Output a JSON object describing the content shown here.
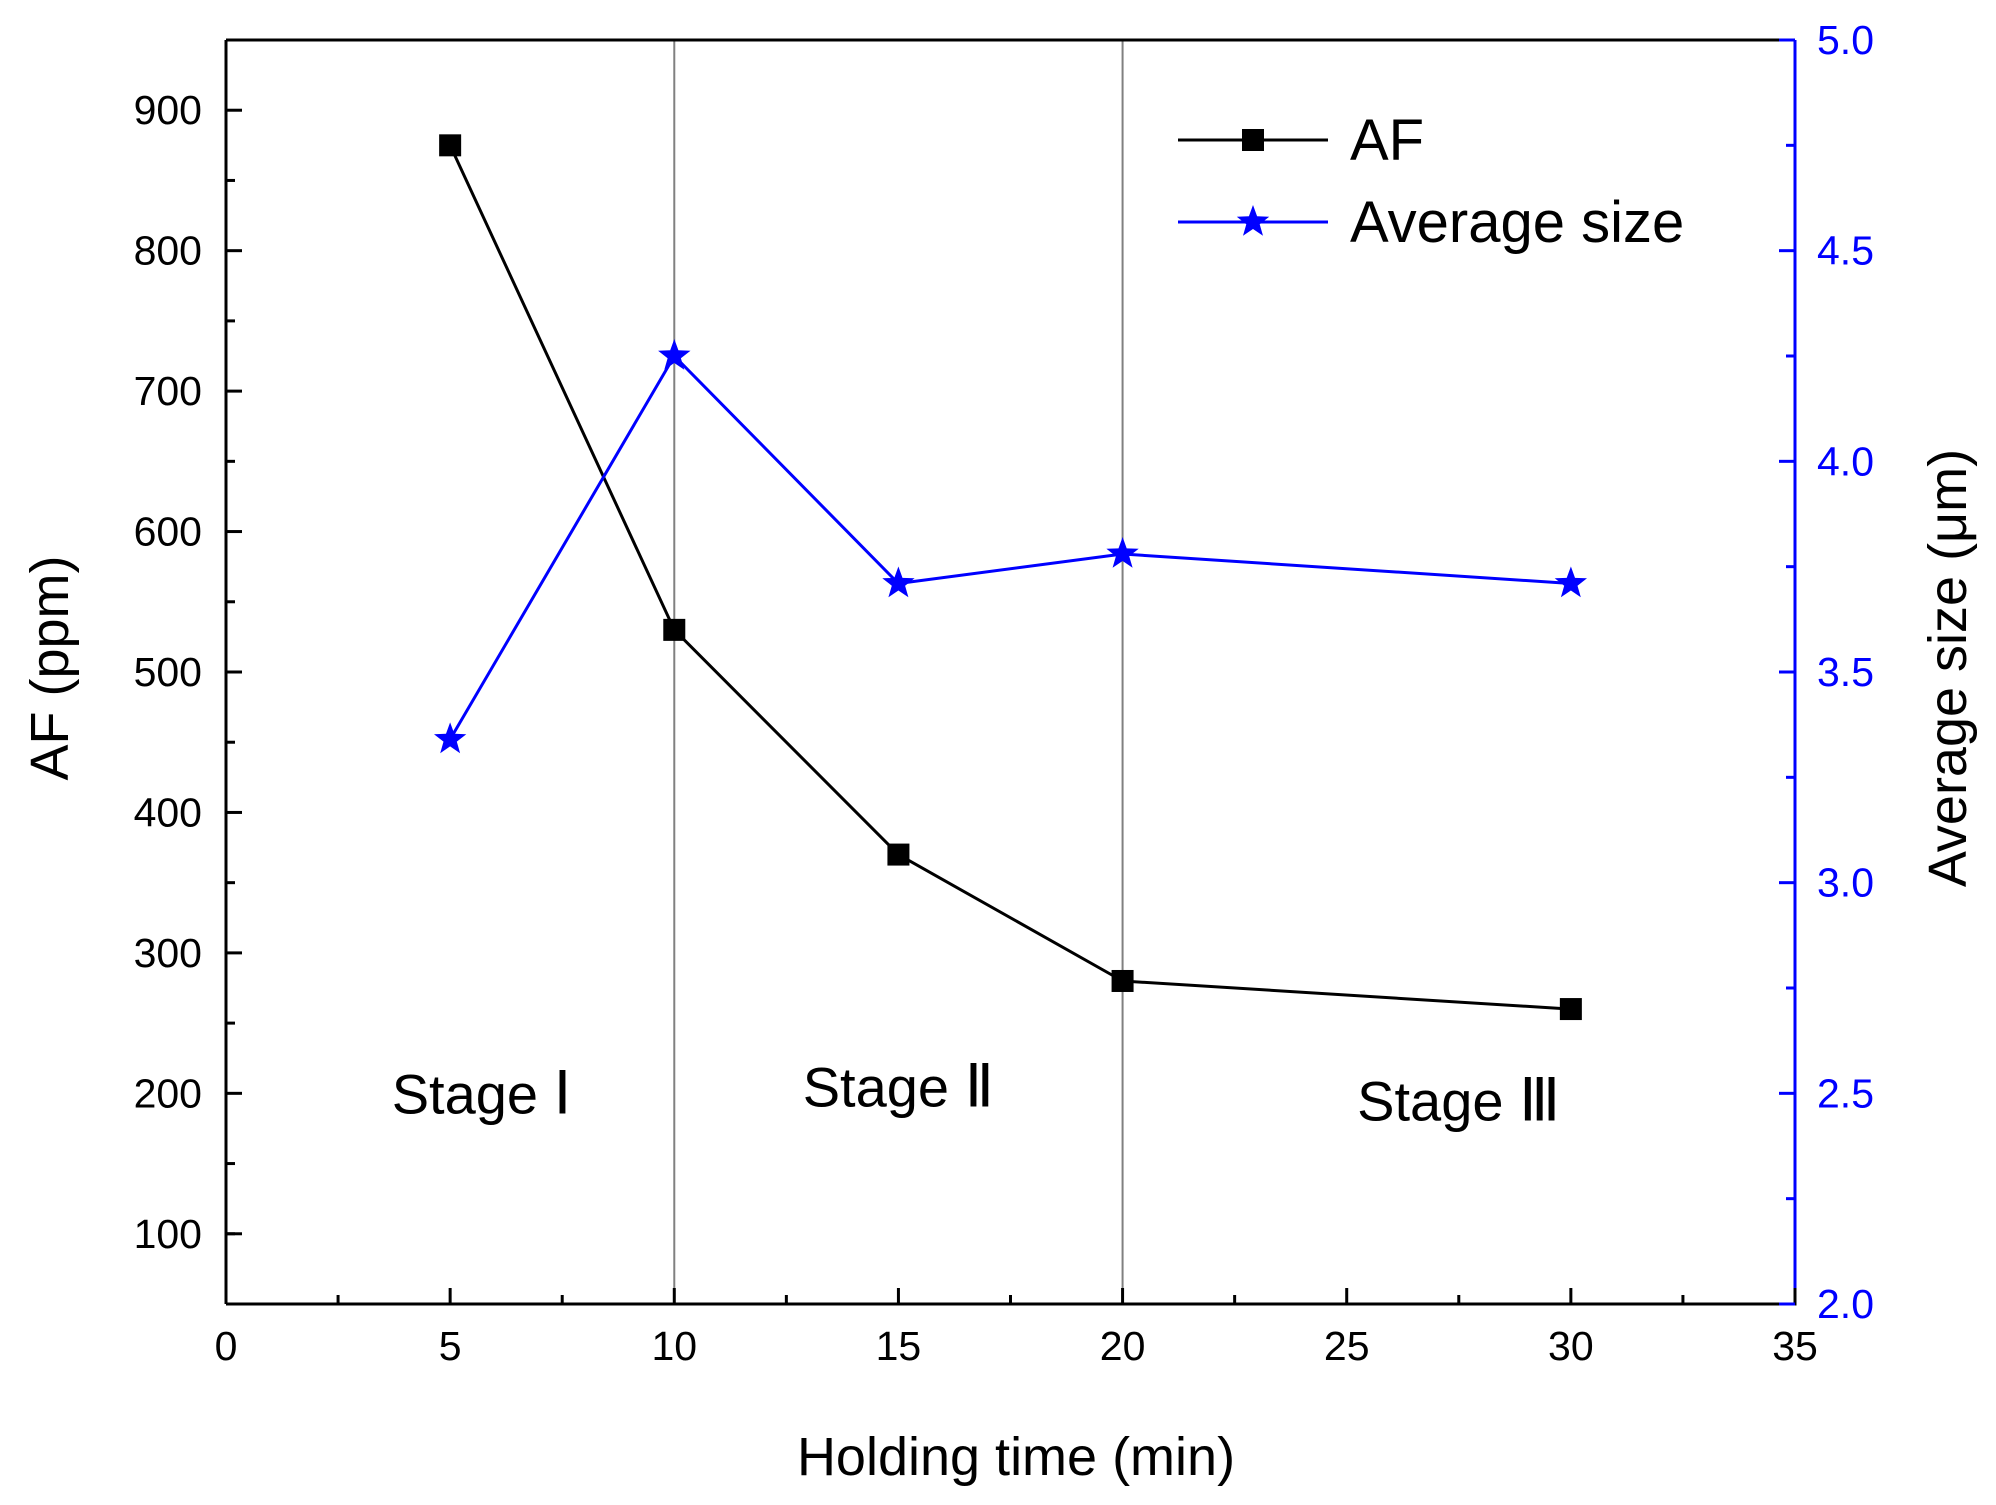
{
  "chart_data": {
    "type": "line",
    "xlabel": "Holding time (min)",
    "ylabel_left": "AF (ppm)",
    "ylabel_right": "Average size (μm)",
    "xlim": [
      0,
      35
    ],
    "ylim_left": [
      50,
      950
    ],
    "ylim_right": [
      2.0,
      5.0
    ],
    "x_ticks": [
      0,
      5,
      10,
      15,
      20,
      25,
      30,
      35
    ],
    "x_tick_labels": [
      "0",
      "5",
      "10",
      "15",
      "20",
      "25",
      "30",
      "35"
    ],
    "y_left_ticks": [
      100,
      200,
      300,
      400,
      500,
      600,
      700,
      800,
      900
    ],
    "y_left_tick_labels": [
      "100",
      "200",
      "300",
      "400",
      "500",
      "600",
      "700",
      "800",
      "900"
    ],
    "y_right_ticks": [
      2.0,
      2.5,
      3.0,
      3.5,
      4.0,
      4.5,
      5.0
    ],
    "y_right_tick_labels": [
      "2.0",
      "2.5",
      "3.0",
      "3.5",
      "4.0",
      "4.5",
      "5.0"
    ],
    "grid": false,
    "legend_position": "top-right",
    "series": [
      {
        "name": "AF",
        "axis": "left",
        "marker": "square",
        "color": "#000000",
        "x": [
          5,
          10,
          15,
          20,
          30
        ],
        "values": [
          875,
          530,
          370,
          280,
          260
        ]
      },
      {
        "name": "Average size",
        "axis": "right",
        "marker": "star",
        "color": "#0000ff",
        "x": [
          5,
          10,
          15,
          20,
          30
        ],
        "values": [
          3.34,
          4.25,
          3.71,
          3.78,
          3.71
        ]
      }
    ],
    "vertical_lines": [
      10,
      20
    ],
    "annotations": [
      {
        "word": "Stage",
        "numeral": "Ⅰ",
        "x": 5.7,
        "y": 200
      },
      {
        "word": "Stage",
        "numeral": "Ⅱ",
        "x": 15,
        "y": 205
      },
      {
        "word": "Stage",
        "numeral": "Ⅲ",
        "x": 27.5,
        "y": 195
      }
    ]
  }
}
